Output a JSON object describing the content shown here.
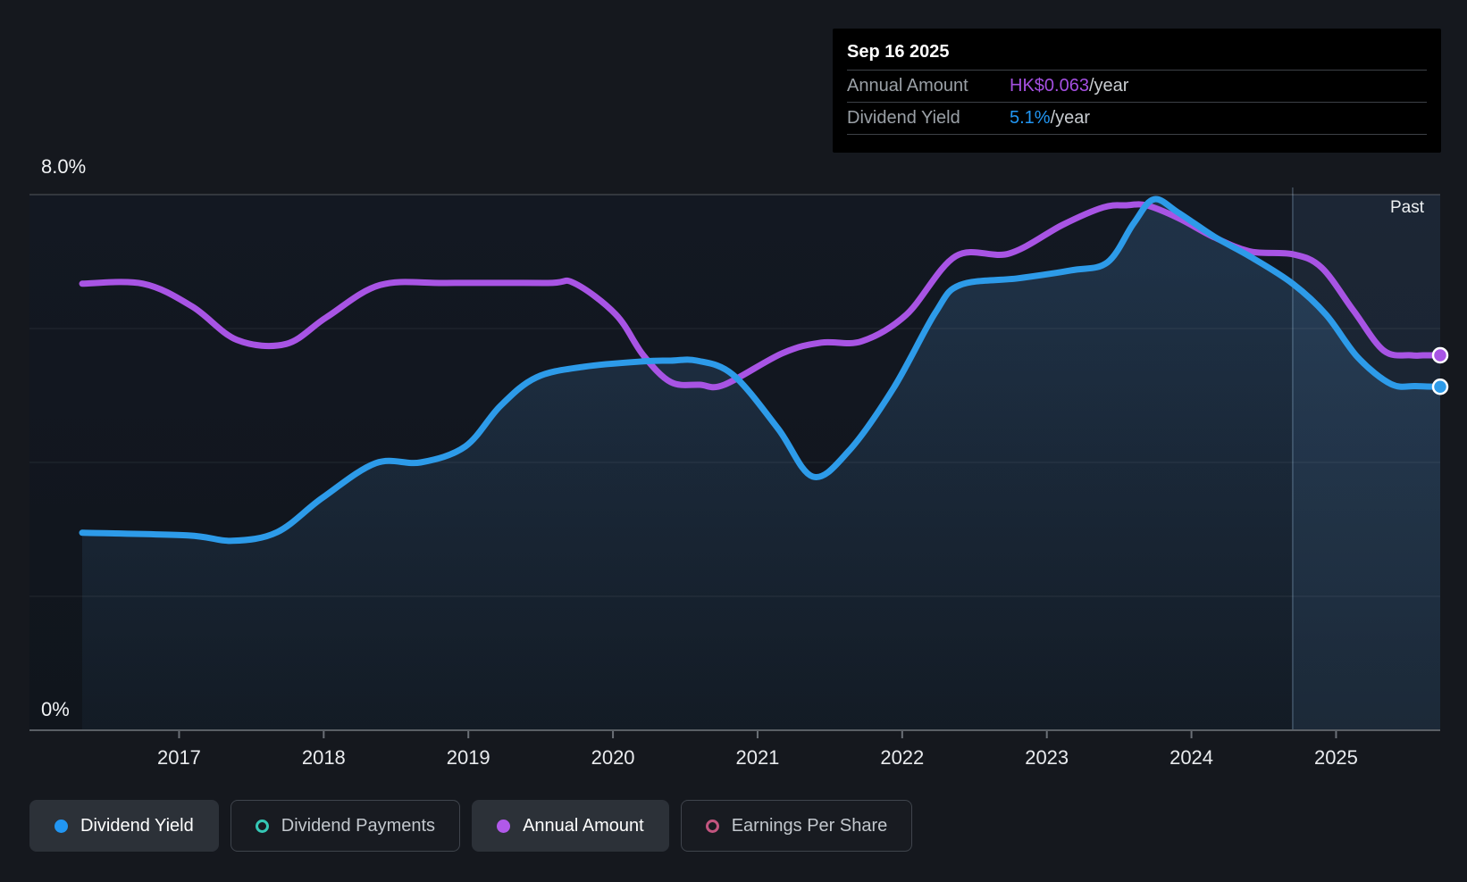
{
  "tooltip": {
    "date": "Sep 16 2025",
    "rows": [
      {
        "label": "Annual Amount",
        "value": "HK$0.063",
        "suffix": "/year",
        "color": "#a44fe0"
      },
      {
        "label": "Dividend Yield",
        "value": "5.1%",
        "suffix": "/year",
        "color": "#2196f3"
      }
    ]
  },
  "legend": [
    {
      "label": "Dividend Yield",
      "marker": "dot",
      "color": "#2196f3",
      "active": true
    },
    {
      "label": "Dividend Payments",
      "marker": "ring",
      "color": "#35c7b5",
      "active": false
    },
    {
      "label": "Annual Amount",
      "marker": "dot",
      "color": "#b159ea",
      "active": true
    },
    {
      "label": "Earnings Per Share",
      "marker": "ring",
      "color": "#c2557f",
      "active": false
    }
  ],
  "chart_data": {
    "type": "area",
    "title": "Dividend yield and annual dividend amount history",
    "past_label": "Past",
    "y_top_label": "8.0%",
    "y_bottom_label": "0%",
    "y_range": [
      0,
      8
    ],
    "y_gridlines_pct": [
      0,
      2,
      4,
      6,
      8
    ],
    "x_range": [
      2016.33,
      2025.72
    ],
    "x_ticks_years": [
      "2017",
      "2018",
      "2019",
      "2020",
      "2021",
      "2022",
      "2023",
      "2024",
      "2025"
    ],
    "past_region_start": 2024.7,
    "grid": "horizontal-only",
    "legend_position": "bottom",
    "latest": {
      "annual_amount": "HK$0.063/year",
      "dividend_yield": "5.1%/year",
      "date": "Sep 16 2025"
    },
    "series": [
      {
        "name": "Dividend Yield",
        "unit": "%",
        "color": "#2d9be9",
        "area": true,
        "end_dot": true,
        "points": [
          [
            2016.33,
            2.95
          ],
          [
            2017.06,
            2.91
          ],
          [
            2017.37,
            2.83
          ],
          [
            2017.68,
            2.96
          ],
          [
            2017.99,
            3.47
          ],
          [
            2018.36,
            3.99
          ],
          [
            2018.67,
            4.0
          ],
          [
            2018.98,
            4.24
          ],
          [
            2019.22,
            4.84
          ],
          [
            2019.47,
            5.27
          ],
          [
            2019.8,
            5.43
          ],
          [
            2020.21,
            5.51
          ],
          [
            2020.4,
            5.52
          ],
          [
            2020.58,
            5.52
          ],
          [
            2020.83,
            5.31
          ],
          [
            2021.14,
            4.51
          ],
          [
            2021.38,
            3.79
          ],
          [
            2021.63,
            4.17
          ],
          [
            2021.94,
            5.11
          ],
          [
            2022.23,
            6.24
          ],
          [
            2022.4,
            6.65
          ],
          [
            2022.8,
            6.75
          ],
          [
            2023.17,
            6.87
          ],
          [
            2023.42,
            6.99
          ],
          [
            2023.6,
            7.57
          ],
          [
            2023.74,
            7.93
          ],
          [
            2023.91,
            7.73
          ],
          [
            2024.16,
            7.37
          ],
          [
            2024.41,
            7.07
          ],
          [
            2024.7,
            6.67
          ],
          [
            2024.93,
            6.21
          ],
          [
            2025.15,
            5.57
          ],
          [
            2025.38,
            5.17
          ],
          [
            2025.55,
            5.14
          ],
          [
            2025.72,
            5.13
          ]
        ]
      },
      {
        "name": "Annual Amount",
        "unit": "percent-scale (latest equals HK$0.063/year)",
        "color": "#a854e4",
        "area": false,
        "end_dot": true,
        "points": [
          [
            2016.33,
            6.67
          ],
          [
            2016.75,
            6.67
          ],
          [
            2017.09,
            6.33
          ],
          [
            2017.4,
            5.83
          ],
          [
            2017.74,
            5.77
          ],
          [
            2018.02,
            6.17
          ],
          [
            2018.39,
            6.65
          ],
          [
            2018.85,
            6.68
          ],
          [
            2019.55,
            6.68
          ],
          [
            2019.73,
            6.68
          ],
          [
            2020.02,
            6.21
          ],
          [
            2020.21,
            5.6
          ],
          [
            2020.4,
            5.2
          ],
          [
            2020.6,
            5.16
          ],
          [
            2020.77,
            5.16
          ],
          [
            2021.17,
            5.63
          ],
          [
            2021.44,
            5.79
          ],
          [
            2021.72,
            5.81
          ],
          [
            2022.03,
            6.21
          ],
          [
            2022.37,
            7.08
          ],
          [
            2022.74,
            7.12
          ],
          [
            2023.11,
            7.55
          ],
          [
            2023.39,
            7.81
          ],
          [
            2023.55,
            7.84
          ],
          [
            2023.69,
            7.84
          ],
          [
            2023.91,
            7.65
          ],
          [
            2024.16,
            7.36
          ],
          [
            2024.41,
            7.15
          ],
          [
            2024.7,
            7.11
          ],
          [
            2024.9,
            6.91
          ],
          [
            2025.12,
            6.27
          ],
          [
            2025.33,
            5.67
          ],
          [
            2025.52,
            5.6
          ],
          [
            2025.6,
            5.6
          ],
          [
            2025.72,
            5.6
          ]
        ]
      }
    ]
  },
  "colors": {
    "page_bg": "#15181e",
    "plot_bg_top": "#131822",
    "plot_bg_bottom": "#10151c",
    "area_fill": "#4a8cc8",
    "grid_bright": "rgba(255,255,255,0.27)",
    "grid_faint": "rgba(255,255,255,0.08)",
    "axis_line": "#5a5f65",
    "tick": "#6b7077",
    "past_overlay": "rgba(110,170,230,0.10)",
    "past_divider": "rgba(170,205,240,0.30)",
    "tooltip_bg": "#000000"
  }
}
